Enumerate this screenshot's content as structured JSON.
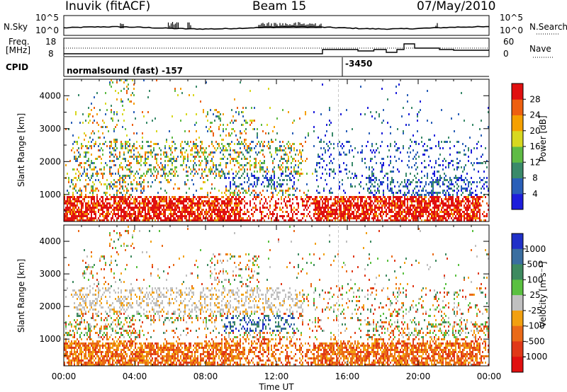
{
  "header": {
    "station": "Inuvik (fitACF)",
    "beam": "Beam 15",
    "date": "07/May/2010"
  },
  "top_panels": {
    "nsky_label": "N.Sky",
    "nsearch_label": "N.Search",
    "nsky_ticks": [
      "10^5",
      "10^0"
    ],
    "nsearch_ticks": [
      "10^5",
      "10^0"
    ],
    "freq_label_1": "Freq.",
    "freq_label_2": "[MHz]",
    "freq_ticks": [
      "18",
      "8"
    ],
    "nave_label": "Nave",
    "nave_ticks": [
      "60",
      "0"
    ],
    "cpid_label": "CPID",
    "cpid_text_1": "normalsound (fast) -157",
    "cpid_text_2": "-3450"
  },
  "chart_data": [
    {
      "type": "heatmap",
      "name": "power",
      "ylabel": "Slant Range [km]",
      "yticks": [
        1000,
        2000,
        3000,
        4000
      ],
      "ylim": [
        180,
        4500
      ],
      "xlim": [
        0,
        24
      ],
      "colorbar_label": "Power [dB]",
      "colorbar_ticks": [
        "4",
        "8",
        "12",
        "16",
        "20",
        "24",
        "28"
      ],
      "colorbar_colors": [
        "#1e1edc",
        "#2a5fb8",
        "#3a8a6a",
        "#5fbb45",
        "#d8d820",
        "#f5a000",
        "#ee6010",
        "#e01010"
      ]
    },
    {
      "type": "heatmap",
      "name": "velocity",
      "ylabel": "Slant Range [km]",
      "yticks": [
        1000,
        2000,
        3000,
        4000
      ],
      "ylim": [
        180,
        4500
      ],
      "xlim": [
        0,
        24
      ],
      "xlabel": "Time UT",
      "xticks": [
        "00:00",
        "04:00",
        "08:00",
        "12:00",
        "16:00",
        "20:00",
        "00:00"
      ],
      "colorbar_label": "Velocity [m s⁻¹]",
      "colorbar_ticks": [
        "1000",
        "500",
        "100",
        "25",
        "-25",
        "-100",
        "-500",
        "-1000"
      ],
      "colorbar_colors": [
        "#2030c8",
        "#3a6ea0",
        "#3e8a60",
        "#5ac040",
        "#c0c0c0",
        "#f2a010",
        "#ea6a18",
        "#e03818",
        "#e01010"
      ]
    }
  ]
}
